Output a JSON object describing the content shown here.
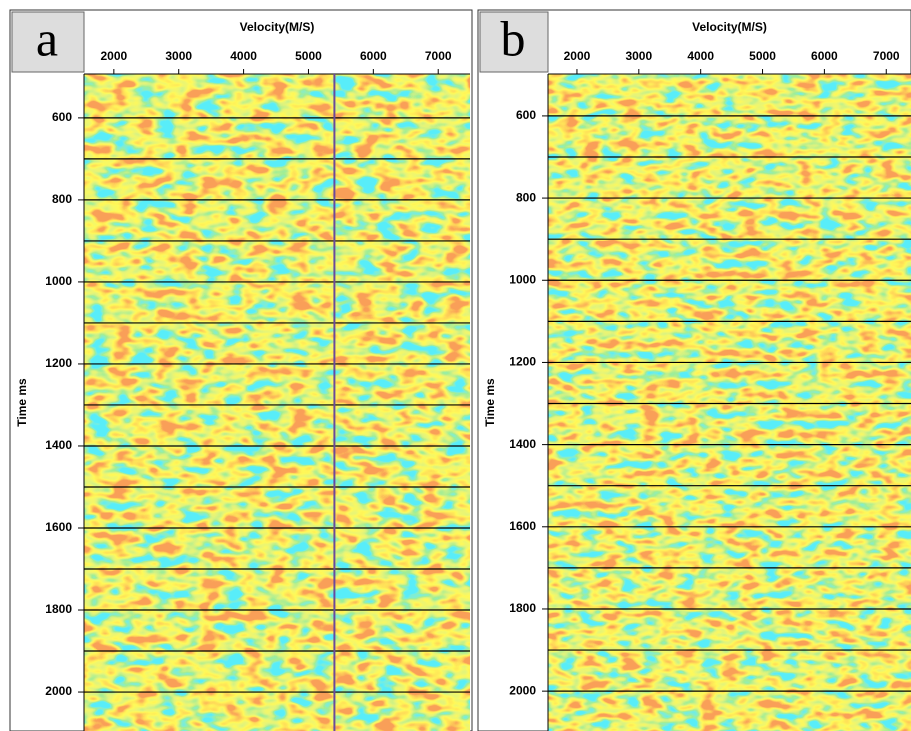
{
  "chart_data": [
    {
      "type": "heatmap",
      "panel_label": "a",
      "xlabel": "Velocity(M/S)",
      "ylabel": "Time ms",
      "xlim": [
        1540,
        7490
      ],
      "ylim": [
        493,
        2095
      ],
      "xticks": [
        2000,
        3000,
        4000,
        5000,
        6000,
        7000
      ],
      "yticks": [
        600,
        800,
        1000,
        1200,
        1400,
        1600,
        1800,
        2000
      ],
      "ygrid": [
        600,
        700,
        800,
        900,
        1000,
        1100,
        1200,
        1300,
        1400,
        1500,
        1600,
        1700,
        1800,
        1900,
        2000
      ],
      "vline": 5400
    },
    {
      "type": "heatmap",
      "panel_label": "b",
      "xlabel": "Velocity(M/S)",
      "ylabel": "Time ms",
      "xlim": [
        1532,
        7400
      ],
      "ylim": [
        498,
        2097
      ],
      "xticks": [
        2000,
        3000,
        4000,
        5000,
        6000,
        7000
      ],
      "yticks": [
        600,
        800,
        1000,
        1200,
        1400,
        1600,
        1800,
        2000
      ],
      "ygrid": [
        600,
        700,
        800,
        900,
        1000,
        1100,
        1200,
        1300,
        1400,
        1500,
        1600,
        1700,
        1800,
        1900,
        2000
      ]
    }
  ]
}
